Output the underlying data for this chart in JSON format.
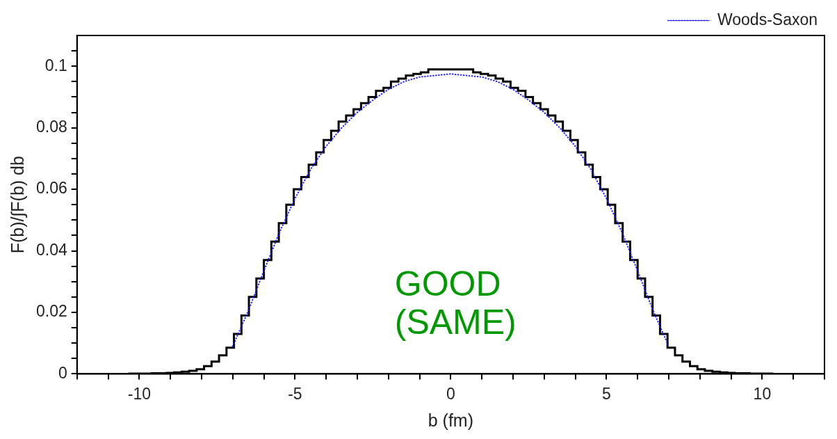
{
  "chart_data": {
    "type": "histogram",
    "xlabel": "b (fm)",
    "ylabel": "F(b)/∫F(b) db",
    "xlim": [
      -12,
      12
    ],
    "ylim": [
      0,
      0.11
    ],
    "xticks": [
      {
        "value": -12,
        "label": null
      },
      {
        "value": -11,
        "label": null
      },
      -10,
      {
        "value": -9,
        "label": null
      },
      {
        "value": -8,
        "label": null
      },
      {
        "value": -7,
        "label": null
      },
      {
        "value": -6,
        "label": null
      },
      -5,
      {
        "value": -4,
        "label": null
      },
      {
        "value": -3,
        "label": null
      },
      {
        "value": -2,
        "label": null
      },
      {
        "value": -1,
        "label": null
      },
      0,
      {
        "value": 1,
        "label": null
      },
      {
        "value": 2,
        "label": null
      },
      {
        "value": 3,
        "label": null
      },
      {
        "value": 4,
        "label": null
      },
      5,
      {
        "value": 6,
        "label": null
      },
      {
        "value": 7,
        "label": null
      },
      {
        "value": 8,
        "label": null
      },
      {
        "value": 9,
        "label": null
      },
      10,
      {
        "value": 11,
        "label": null
      },
      {
        "value": 12,
        "label": null
      }
    ],
    "yticks": [
      0,
      {
        "value": 0.005,
        "label": null
      },
      {
        "value": 0.01,
        "label": null
      },
      {
        "value": 0.015,
        "label": null
      },
      0.02,
      {
        "value": 0.025,
        "label": null
      },
      {
        "value": 0.03,
        "label": null
      },
      {
        "value": 0.035,
        "label": null
      },
      0.04,
      {
        "value": 0.045,
        "label": null
      },
      {
        "value": 0.05,
        "label": null
      },
      {
        "value": 0.055,
        "label": null
      },
      0.06,
      {
        "value": 0.065,
        "label": null
      },
      {
        "value": 0.07,
        "label": null
      },
      {
        "value": 0.075,
        "label": null
      },
      0.08,
      {
        "value": 0.085,
        "label": null
      },
      {
        "value": 0.09,
        "label": null
      },
      {
        "value": 0.095,
        "label": null
      },
      0.1,
      {
        "value": 0.105,
        "label": null
      }
    ],
    "bins": [
      -12,
      -11.76,
      -11.52,
      -11.28,
      -11.04,
      -10.8,
      -10.56,
      -10.32,
      -10.08,
      -9.84,
      -9.6,
      -9.36,
      -9.12,
      -8.88,
      -8.64,
      -8.4,
      -8.16,
      -7.92,
      -7.68,
      -7.44,
      -7.2,
      -6.96,
      -6.72,
      -6.48,
      -6.24,
      -6,
      -5.76,
      -5.52,
      -5.28,
      -5.04,
      -4.8,
      -4.56,
      -4.32,
      -4.08,
      -3.84,
      -3.6,
      -3.36,
      -3.12,
      -2.88,
      -2.64,
      -2.4,
      -2.16,
      -1.92,
      -1.68,
      -1.44,
      -1.2,
      -0.96,
      -0.72,
      -0.48,
      -0.24,
      0,
      0.24,
      0.48,
      0.72,
      0.96,
      1.2,
      1.44,
      1.68,
      1.92,
      2.16,
      2.4,
      2.64,
      2.88,
      3.12,
      3.36,
      3.6,
      3.84,
      4.08,
      4.32,
      4.56,
      4.8,
      5.04,
      5.28,
      5.52,
      5.76,
      6,
      6.24,
      6.48,
      6.72,
      6.96,
      7.2,
      7.44,
      7.68,
      7.92,
      8.16,
      8.4,
      8.64,
      8.88,
      9.12,
      9.36,
      9.6,
      9.84,
      10.08,
      10.32,
      10.56,
      10.8,
      11.04,
      11.28,
      11.52,
      11.76,
      12
    ],
    "values": [
      0,
      0,
      0,
      0,
      0,
      0,
      0,
      0.0001,
      0.0001,
      0.0001,
      0.0002,
      0.0002,
      0.0003,
      0.0005,
      0.0007,
      0.001,
      0.0015,
      0.0025,
      0.004,
      0.006,
      0.0085,
      0.013,
      0.019,
      0.025,
      0.031,
      0.037,
      0.043,
      0.049,
      0.055,
      0.06,
      0.064,
      0.068,
      0.072,
      0.076,
      0.079,
      0.082,
      0.084,
      0.086,
      0.088,
      0.09,
      0.092,
      0.093,
      0.095,
      0.096,
      0.097,
      0.0975,
      0.098,
      0.099,
      0.099,
      0.099,
      0.099,
      0.099,
      0.099,
      0.098,
      0.0975,
      0.097,
      0.096,
      0.095,
      0.093,
      0.092,
      0.09,
      0.088,
      0.086,
      0.084,
      0.082,
      0.079,
      0.076,
      0.072,
      0.068,
      0.064,
      0.06,
      0.055,
      0.049,
      0.043,
      0.037,
      0.031,
      0.025,
      0.019,
      0.013,
      0.0085,
      0.006,
      0.004,
      0.0025,
      0.0015,
      0.001,
      0.0007,
      0.0005,
      0.0003,
      0.0002,
      0.0002,
      0.0001,
      0.0001,
      0.0001,
      0,
      0,
      0,
      0,
      0,
      0,
      0
    ],
    "color": "#000000",
    "series": [
      {
        "name": "Woods-Saxon",
        "type": "line",
        "color": "#1a1aff",
        "line_style": "dotted",
        "marker": "none",
        "x": [
          -7,
          -6.5,
          -6,
          -5.5,
          -5,
          -4.5,
          -4,
          -3.5,
          -3,
          -2.5,
          -2,
          -1.5,
          -1,
          -0.5,
          0,
          0.5,
          1,
          1.5,
          2,
          2.5,
          3,
          3.5,
          4,
          4.5,
          5,
          5.5,
          6,
          6.5,
          7
        ],
        "values": [
          0.009,
          0.0205,
          0.0335,
          0.046,
          0.057,
          0.0665,
          0.074,
          0.08,
          0.085,
          0.089,
          0.0925,
          0.095,
          0.0965,
          0.097,
          0.0975,
          0.097,
          0.0965,
          0.095,
          0.0925,
          0.089,
          0.085,
          0.08,
          0.074,
          0.0665,
          0.057,
          0.046,
          0.0335,
          0.0205,
          0.009
        ]
      }
    ],
    "legend": "top right",
    "annotations": [
      "GOOD (SAME)"
    ]
  }
}
